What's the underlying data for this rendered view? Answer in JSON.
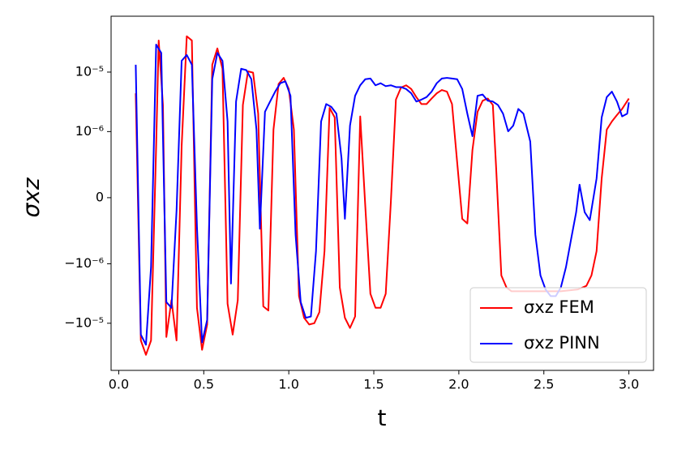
{
  "chart_data": {
    "type": "line",
    "xlabel": "t",
    "ylabel": "σxz",
    "yscale": "symlog",
    "linthresh": 1e-06,
    "linscale": 1,
    "xlim": [
      -0.045,
      3.145
    ],
    "ylim": [
      -6.2e-05,
      8.7e-05
    ],
    "xticks": [
      {
        "value": 0,
        "label": "0.0"
      },
      {
        "value": 0.5,
        "label": "0.5"
      },
      {
        "value": 1,
        "label": "1.0"
      },
      {
        "value": 1.5,
        "label": "1.5"
      },
      {
        "value": 2,
        "label": "2.0"
      },
      {
        "value": 2.5,
        "label": "2.5"
      },
      {
        "value": 3,
        "label": "3.0"
      }
    ],
    "yticks": [
      {
        "value": -1e-05,
        "label": "−10⁻⁵"
      },
      {
        "value": -1e-06,
        "label": "−10⁻⁶"
      },
      0,
      {
        "value": 1e-06,
        "label": "10⁻⁶"
      },
      {
        "value": 1e-05,
        "label": "10⁻⁵"
      }
    ],
    "legend": "lower right",
    "series": [
      {
        "name": "σxz FEM",
        "color": "#ff0000",
        "x": [
          0.1,
          0.13,
          0.16,
          0.19,
          0.22,
          0.235,
          0.26,
          0.28,
          0.31,
          0.34,
          0.37,
          0.4,
          0.43,
          0.46,
          0.49,
          0.52,
          0.55,
          0.58,
          0.61,
          0.64,
          0.67,
          0.7,
          0.73,
          0.76,
          0.79,
          0.82,
          0.85,
          0.88,
          0.91,
          0.94,
          0.97,
          1.0,
          1.03,
          1.06,
          1.09,
          1.12,
          1.15,
          1.18,
          1.21,
          1.24,
          1.27,
          1.3,
          1.33,
          1.36,
          1.39,
          1.42,
          1.45,
          1.48,
          1.51,
          1.54,
          1.57,
          1.6,
          1.63,
          1.66,
          1.69,
          1.72,
          1.75,
          1.78,
          1.81,
          1.84,
          1.87,
          1.9,
          1.93,
          1.96,
          1.99,
          2.02,
          2.05,
          2.08,
          2.11,
          2.14,
          2.17,
          2.2,
          2.22,
          2.25,
          2.28,
          2.31,
          2.4,
          2.5,
          2.6,
          2.7,
          2.75,
          2.78,
          2.81,
          2.84,
          2.87,
          2.9,
          2.93,
          2.96,
          3.0
        ],
        "values": [
          4.4e-06,
          -1.95e-05,
          -3.4e-05,
          -1.95e-05,
          7.8e-07,
          3.4e-05,
          2.8e-06,
          -1.7e-05,
          -4.1e-06,
          -1.95e-05,
          7.8e-07,
          4e-05,
          3.4e-05,
          -5.5e-06,
          -2.8e-05,
          -1.05e-05,
          1.33e-05,
          2.5e-05,
          1.14e-05,
          -4.7e-06,
          -1.55e-05,
          -4.1e-06,
          2.8e-06,
          1.03e-05,
          9.8e-06,
          2e-06,
          -5.2e-06,
          -6.1e-06,
          1.08e-06,
          6.3e-06,
          8e-06,
          5.2e-06,
          1.08e-06,
          -3.5e-06,
          -8.1e-06,
          -1.05e-05,
          -1e-05,
          -6.5e-06,
          -8.1e-07,
          2.5e-06,
          1.73e-06,
          -2.5e-06,
          -8.1e-06,
          -1.2e-05,
          -7.7e-06,
          1.8e-06,
          -1.35e-07,
          -3.2e-06,
          -5.5e-06,
          -5.5e-06,
          -3.2e-06,
          -7.4e-08,
          3.45e-06,
          5.5e-06,
          6e-06,
          5.2e-06,
          3.8e-06,
          2.9e-06,
          2.9e-06,
          3.6e-06,
          4.4e-06,
          5e-06,
          4.7e-06,
          2.9e-06,
          5.4e-07,
          -3.2e-07,
          -3.9e-07,
          7.2e-07,
          2.15e-06,
          3.3e-06,
          3.6e-06,
          2.8e-06,
          4.2e-07,
          -1.57e-06,
          -2.5e-06,
          -2.9e-06,
          -2.9e-06,
          -2.9e-06,
          -2.9e-06,
          -2.7e-06,
          -2.35e-06,
          -1.57e-06,
          -8.1e-07,
          2.9e-07,
          1.08e-06,
          1.48e-06,
          1.9e-06,
          2.4e-06,
          3.6e-06
        ]
      },
      {
        "name": "σxz PINN",
        "color": "#0000ff",
        "x": [
          0.1,
          0.13,
          0.16,
          0.19,
          0.22,
          0.25,
          0.28,
          0.31,
          0.34,
          0.37,
          0.4,
          0.43,
          0.46,
          0.49,
          0.52,
          0.55,
          0.58,
          0.61,
          0.64,
          0.66,
          0.69,
          0.72,
          0.75,
          0.78,
          0.81,
          0.83,
          0.86,
          0.89,
          0.92,
          0.95,
          0.98,
          1.01,
          1.04,
          1.07,
          1.1,
          1.13,
          1.16,
          1.19,
          1.22,
          1.25,
          1.28,
          1.31,
          1.33,
          1.36,
          1.39,
          1.42,
          1.45,
          1.48,
          1.51,
          1.54,
          1.57,
          1.6,
          1.63,
          1.66,
          1.69,
          1.72,
          1.75,
          1.78,
          1.81,
          1.84,
          1.87,
          1.9,
          1.93,
          1.96,
          1.99,
          2.02,
          2.05,
          2.08,
          2.11,
          2.14,
          2.17,
          2.2,
          2.23,
          2.26,
          2.29,
          2.32,
          2.35,
          2.38,
          2.42,
          2.45,
          2.48,
          2.51,
          2.54,
          2.57,
          2.6,
          2.63,
          2.66,
          2.69,
          2.71,
          2.74,
          2.77,
          2.81,
          2.84,
          2.87,
          2.9,
          2.93,
          2.96,
          2.99,
          3.0
        ],
        "values": [
          1.33e-05,
          -1.55e-05,
          -2.3e-05,
          -1.14e-06,
          2.9e-05,
          2.1e-05,
          -4.4e-06,
          -5.5e-06,
          -1.96e-07,
          1.55e-05,
          1.94e-05,
          1.33e-05,
          -4.4e-07,
          -2.1e-05,
          -8.8e-06,
          7.6e-06,
          2.1e-05,
          1.55e-05,
          1.48e-06,
          -2.15e-06,
          3.2e-06,
          1.14e-05,
          1.08e-05,
          7.6e-06,
          1.08e-06,
          -4.7e-07,
          2.15e-06,
          3.2e-06,
          4.7e-06,
          6.5e-06,
          7e-06,
          4e-06,
          -5.6e-07,
          -4.4e-06,
          -8.1e-06,
          -7.7e-06,
          -8.1e-07,
          1.48e-06,
          2.9e-06,
          2.6e-06,
          2e-06,
          6e-07,
          -3.2e-07,
          1.26e-06,
          4e-06,
          6e-06,
          7.6e-06,
          7.8e-06,
          6e-06,
          6.5e-06,
          5.8e-06,
          6e-06,
          5.6e-06,
          5.6e-06,
          5.2e-06,
          4.4e-06,
          3.2e-06,
          3.45e-06,
          3.8e-06,
          4.7e-06,
          6.5e-06,
          7.8e-06,
          8e-06,
          7.8e-06,
          7.6e-06,
          5.2e-06,
          2e-06,
          9.3e-07,
          4e-06,
          4.2e-06,
          3.3e-06,
          3.2e-06,
          2.8e-06,
          2e-06,
          1.01e-06,
          1.26e-06,
          2.4e-06,
          2e-06,
          8.5e-07,
          -5.6e-07,
          -1.57e-06,
          -2.7e-06,
          -3.5e-06,
          -3.5e-06,
          -2.5e-06,
          -1.14e-06,
          -6.3e-07,
          -2.2e-07,
          1.96e-07,
          -2.2e-07,
          -3.4e-07,
          2.9e-07,
          1.73e-06,
          3.8e-06,
          4.7e-06,
          3.2e-06,
          1.8e-06,
          2e-06,
          3.1e-06
        ]
      }
    ]
  }
}
